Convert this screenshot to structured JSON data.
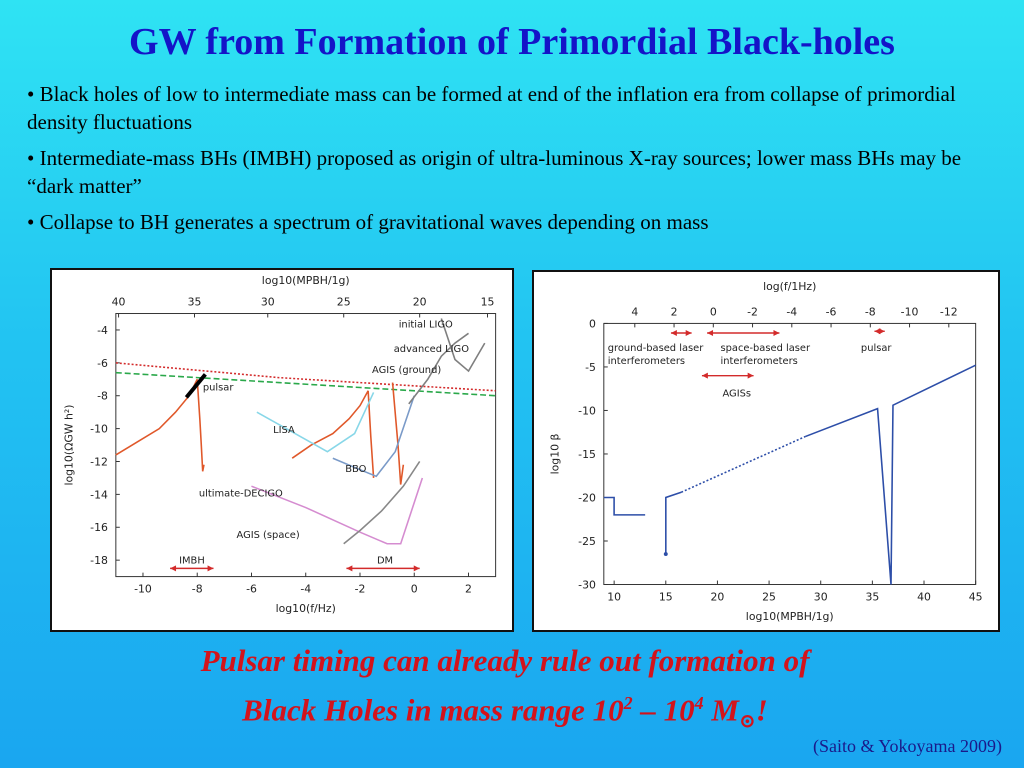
{
  "slide": {
    "title": "GW from Formation of Primordial Black-holes",
    "bullets": [
      "• Black holes of low to intermediate mass can be formed at end of the inflation era from  collapse of primordial density fluctuations",
      "• Intermediate-mass BHs (IMBH) proposed as origin of ultra-luminous X-ray sources; lower mass BHs may be “dark matter”",
      "• Collapse to BH generates a spectrum of gravitational waves depending on mass"
    ],
    "conclusion_line1": "Pulsar timing can already rule out formation of",
    "conclusion_line2_pre": "Black Holes in mass range 10",
    "conclusion_exp1": "2",
    "conclusion_mid": " – 10",
    "conclusion_exp2": "4",
    "conclusion_unit": " M",
    "conclusion_sun": "⊙",
    "conclusion_end": "!",
    "citation": "(Saito & Yokoyama 2009)"
  },
  "chart_data": [
    {
      "type": "line",
      "ylabel": "log10(ΩGW h²)",
      "xlabel": "log10(f/Hz)",
      "top_axis_label": "log10(MPBH/1g)",
      "xlim": [
        -11,
        3
      ],
      "ylim": [
        -19,
        -3
      ],
      "x_ticks": [
        -10,
        -8,
        -6,
        -4,
        -2,
        0,
        2
      ],
      "y_ticks": [
        -4,
        -6,
        -8,
        -10,
        -12,
        -14,
        -16,
        -18
      ],
      "top_ticks": [
        40,
        35,
        30,
        25,
        20,
        15
      ],
      "top_tick_positions_x": [
        -10.9,
        -8.1,
        -5.4,
        -2.6,
        0.2,
        2.7
      ],
      "annotations": {
        "initial_ligo": "initial LIGO",
        "advanced_ligo": "advanced LIGO",
        "agis_ground": "AGIS (ground)",
        "pulsar": "pulsar",
        "lisa": "LISA",
        "bbo": "BBO",
        "ultimate_decigo": "ultimate-DECIGO",
        "agis_space": "AGIS (space)",
        "imbh": "IMBH",
        "dm": "DM"
      },
      "series": [
        {
          "color": "#d32b2b",
          "dash": "2,2",
          "x": [
            -11,
            -9,
            -7,
            -5,
            -3,
            -1,
            1,
            3
          ],
          "y": [
            -6.0,
            -6.3,
            -6.6,
            -6.9,
            -7.1,
            -7.3,
            -7.5,
            -7.7
          ]
        },
        {
          "color": "#2aa84a",
          "dash": "6,3",
          "x": [
            -11,
            -8,
            -5,
            -2,
            1,
            3
          ],
          "y": [
            -6.6,
            -6.9,
            -7.2,
            -7.5,
            -7.8,
            -8.0
          ]
        },
        {
          "color": "#e0582a",
          "x": [
            -11,
            -10.2,
            -9.4,
            -8.8,
            -8.3,
            -8.0
          ],
          "y": [
            -11.6,
            -10.8,
            -10.0,
            -9.0,
            -8.0,
            -7.0
          ]
        },
        {
          "color": "#e0582a",
          "x": [
            -8.0,
            -7.9,
            -7.85,
            -7.8,
            -7.75
          ],
          "y": [
            -7.0,
            -9.5,
            -11.0,
            -12.6,
            -12.2
          ]
        },
        {
          "color": "#e0582a",
          "x": [
            -4.5,
            -3.8,
            -3.0,
            -2.4,
            -2.0,
            -1.7
          ],
          "y": [
            -11.8,
            -11.0,
            -10.3,
            -9.4,
            -8.6,
            -7.7
          ]
        },
        {
          "color": "#e0582a",
          "x": [
            -1.7,
            -1.6,
            -1.5
          ],
          "y": [
            -7.7,
            -10.5,
            -13.0
          ]
        },
        {
          "color": "#e0582a",
          "x": [
            -0.8,
            -0.6,
            -0.5,
            -0.4
          ],
          "y": [
            -7.2,
            -11.0,
            -13.4,
            -12.2
          ]
        },
        {
          "color": "#88d7e8",
          "x": [
            -5.8,
            -4.5,
            -3.2,
            -2.2,
            -1.5
          ],
          "y": [
            -9.0,
            -10.2,
            -11.4,
            -10.3,
            -7.8
          ]
        },
        {
          "color": "#7a9ac8",
          "x": [
            -3.0,
            -2.0,
            -1.4,
            -0.7,
            0.0
          ],
          "y": [
            -11.8,
            -12.5,
            -12.9,
            -11.4,
            -8.0
          ]
        },
        {
          "color": "#d58cd0",
          "x": [
            -6.0,
            -4.0,
            -2.0,
            -1.0,
            -0.5,
            0.3
          ],
          "y": [
            -13.5,
            -14.8,
            -16.3,
            -17.0,
            -17.0,
            -13.0
          ]
        },
        {
          "color": "#888888",
          "x": [
            -2.6,
            -2.0,
            -1.2,
            -0.4,
            0.2
          ],
          "y": [
            -17.0,
            -16.2,
            -15.0,
            -13.5,
            -12.0
          ]
        },
        {
          "color": "#7f7f7f",
          "x": [
            -0.2,
            0.5,
            1.0,
            1.5,
            2.0
          ],
          "y": [
            -8.5,
            -7.0,
            -5.6,
            -4.8,
            -4.2
          ]
        },
        {
          "color": "#7f7f7f",
          "x": [
            1.0,
            1.5,
            2.0,
            2.6
          ],
          "y": [
            -3.3,
            -5.8,
            -6.5,
            -4.8
          ]
        }
      ],
      "markers": {
        "pulsar_bar": {
          "x": [
            -8.4,
            -7.7
          ],
          "y": [
            -8.1,
            -6.7
          ]
        },
        "imbh_arrow": {
          "x": [
            -9.0,
            -7.4
          ],
          "y": [
            -18.5,
            -18.5
          ]
        },
        "dm_arrow": {
          "x": [
            -2.5,
            0.2
          ],
          "y": [
            -18.5,
            -18.5
          ]
        }
      }
    },
    {
      "type": "line",
      "ylabel": "log10 β",
      "xlabel": "log10(MPBH/1g)",
      "top_axis_label": "log(f/1Hz)",
      "xlim": [
        9,
        45
      ],
      "ylim": [
        -30,
        0
      ],
      "x_ticks": [
        10,
        15,
        20,
        25,
        30,
        35,
        40,
        45
      ],
      "y_ticks": [
        0,
        -5,
        -10,
        -15,
        -20,
        -25,
        -30
      ],
      "top_ticks": [
        4,
        2,
        0,
        -2,
        -4,
        -6,
        -8,
        -10,
        -12
      ],
      "top_tick_positions_x": [
        12.0,
        15.8,
        19.6,
        23.4,
        27.2,
        31.0,
        34.8,
        38.6,
        42.4
      ],
      "annotations": {
        "ground": "ground-based laser interferometers",
        "ground_l1": "ground-based laser",
        "ground_l2": "interferometers",
        "space_l1": "space-based laser",
        "space_l2": "interferometers",
        "pulsar": "pulsar",
        "agis": "AGISs"
      },
      "series": [
        {
          "color": "#2d4ea8",
          "x": [
            9,
            10,
            10,
            13
          ],
          "y": [
            -20,
            -20,
            -22,
            -22
          ]
        },
        {
          "color": "#2d4ea8",
          "x": [
            15,
            15,
            16.5
          ],
          "y": [
            -26.5,
            -20,
            -19.4
          ]
        },
        {
          "color": "#2d4ea8",
          "dash": "2,2",
          "x": [
            16.5,
            28.5
          ],
          "y": [
            -19.4,
            -13.0
          ]
        },
        {
          "color": "#2d4ea8",
          "x": [
            28.5,
            35.5,
            36.8,
            37.0,
            45
          ],
          "y": [
            -13.0,
            -9.8,
            -30.0,
            -9.4,
            -4.8
          ]
        }
      ],
      "arrows": {
        "ground": {
          "x": [
            15.5,
            17.5
          ],
          "y": [
            -1.1,
            -1.1
          ]
        },
        "space": {
          "x": [
            19.0,
            26.0
          ],
          "y": [
            -1.1,
            -1.1
          ]
        },
        "pulsar": {
          "x": [
            35.2,
            36.2
          ],
          "y": [
            -0.9,
            -0.9
          ]
        },
        "agis": {
          "x": [
            18.5,
            23.5
          ],
          "y": [
            -6.0,
            -6.0
          ]
        }
      }
    }
  ]
}
